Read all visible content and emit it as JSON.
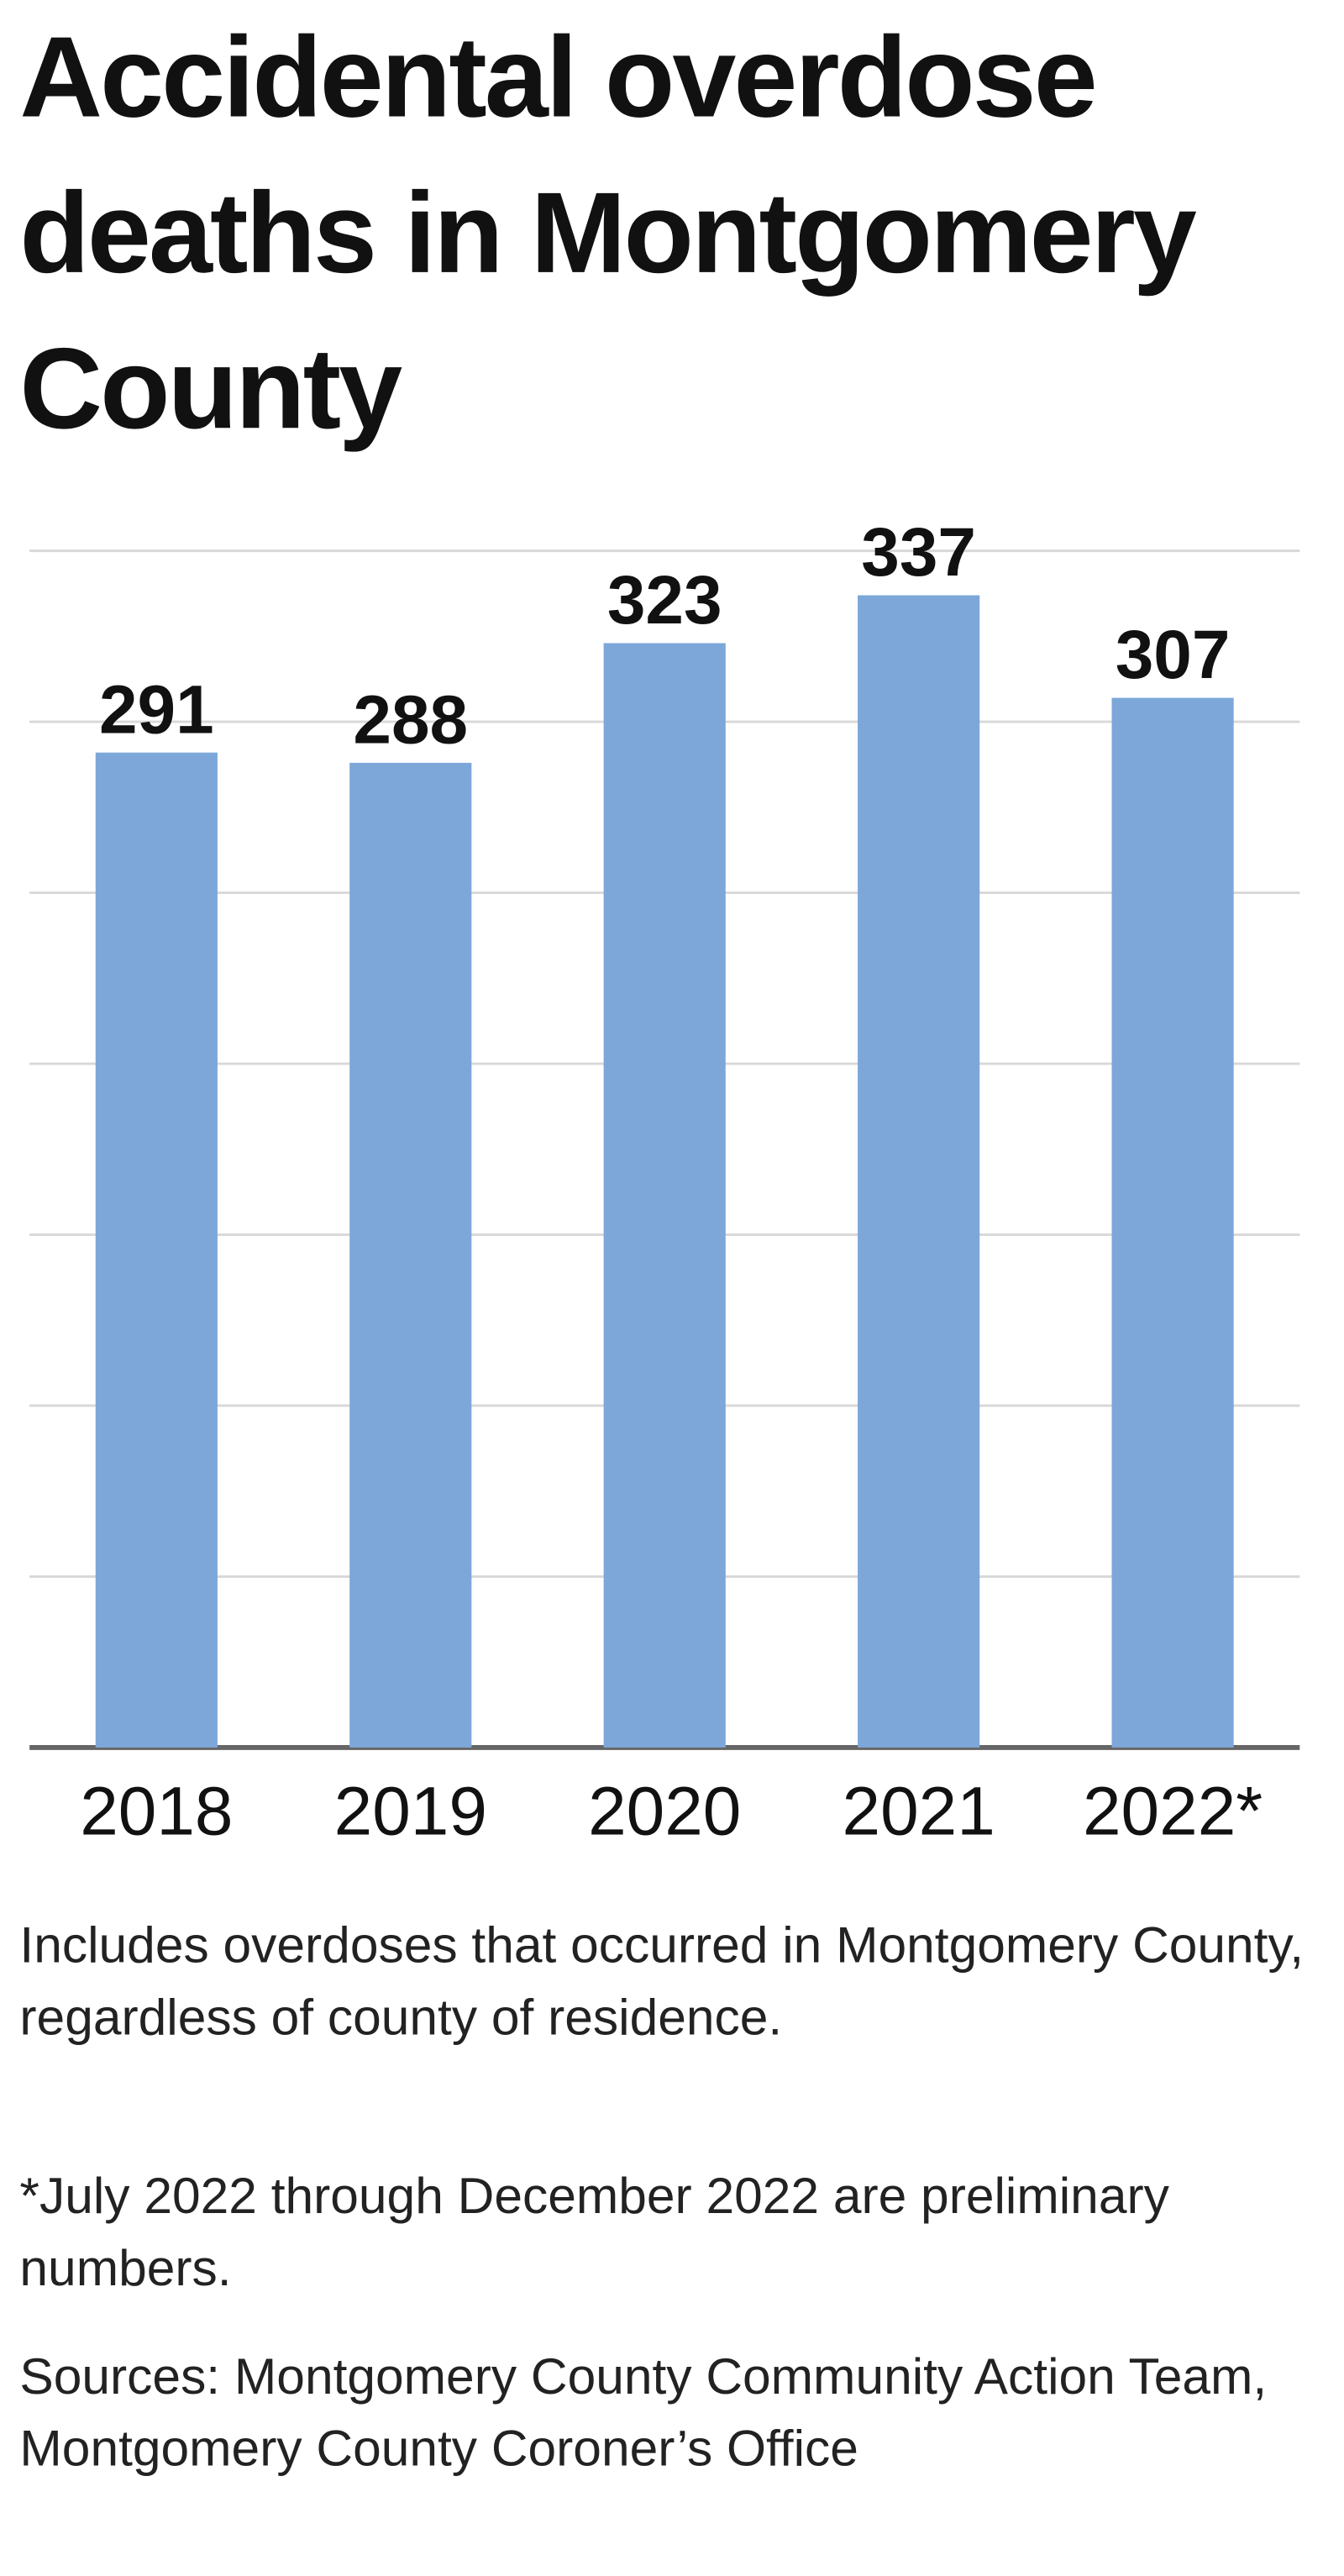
{
  "chart_data": {
    "type": "bar",
    "title": "Accidental overdose deaths in Montgomery County",
    "categories": [
      "2018",
      "2019",
      "2020",
      "2021",
      "2022*"
    ],
    "values": [
      291,
      288,
      323,
      337,
      307
    ],
    "color": "#7da7d9",
    "ylim": [
      0,
      350
    ],
    "yticks": [
      0,
      50,
      100,
      150,
      200,
      250,
      300,
      350
    ],
    "grid": true,
    "notes": [
      "Includes overdoses that occurred in Montgomery County, regardless of county of residence.",
      "*July 2022 through December 2022 are preliminary numbers."
    ],
    "source": "Sources: Montgomery County Community Action Team, Montgomery County Coroner’s Office"
  }
}
